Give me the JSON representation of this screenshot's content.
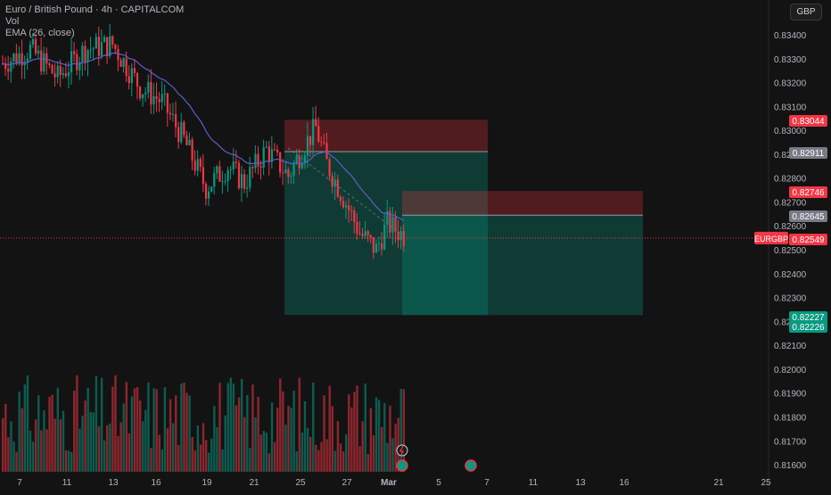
{
  "legend": {
    "symbol_title": "Euro / British Pound · 4h · CAPITALCOM",
    "volume_label": "Vol",
    "ema_label": "EMA (26, close)"
  },
  "currency_button": "GBP",
  "symbol_badge": "EURGBP",
  "chart_data": {
    "type": "candlestick",
    "y_ticks": [
      "0.83400",
      "0.83300",
      "0.83200",
      "0.83100",
      "0.83000",
      "0.82900",
      "0.82800",
      "0.82700",
      "0.82600",
      "0.82500",
      "0.82400",
      "0.82300",
      "0.82200",
      "0.82100",
      "0.82000",
      "0.81900",
      "0.81800",
      "0.81700",
      "0.81600"
    ],
    "x_ticks": [
      "7",
      "11",
      "13",
      "16",
      "19",
      "21",
      "25",
      "27",
      "Mar",
      "5",
      "7",
      "11",
      "13",
      "16",
      "21",
      "25"
    ],
    "ylim": [
      0.816,
      0.8343
    ],
    "current_price": 0.82549,
    "price_labels": [
      {
        "value": "0.83044",
        "color": "#f23645"
      },
      {
        "value": "0.82911",
        "color": "#787b86"
      },
      {
        "value": "0.82746",
        "color": "#f23645"
      },
      {
        "value": "0.82645",
        "color": "#787b86"
      },
      {
        "value": "0.82549",
        "color": "#f23645"
      },
      {
        "value": "0.82227",
        "color": "#089981"
      },
      {
        "value": "0.82226",
        "color": "#089981"
      }
    ],
    "positions": [
      {
        "entry": 0.82911,
        "stop": 0.83044,
        "target": 0.82227
      },
      {
        "entry": 0.82645,
        "stop": 0.82746,
        "target": 0.82226
      }
    ],
    "colors": {
      "up": "#089981",
      "down": "#f23645",
      "ema": "#5b5fc7"
    }
  }
}
